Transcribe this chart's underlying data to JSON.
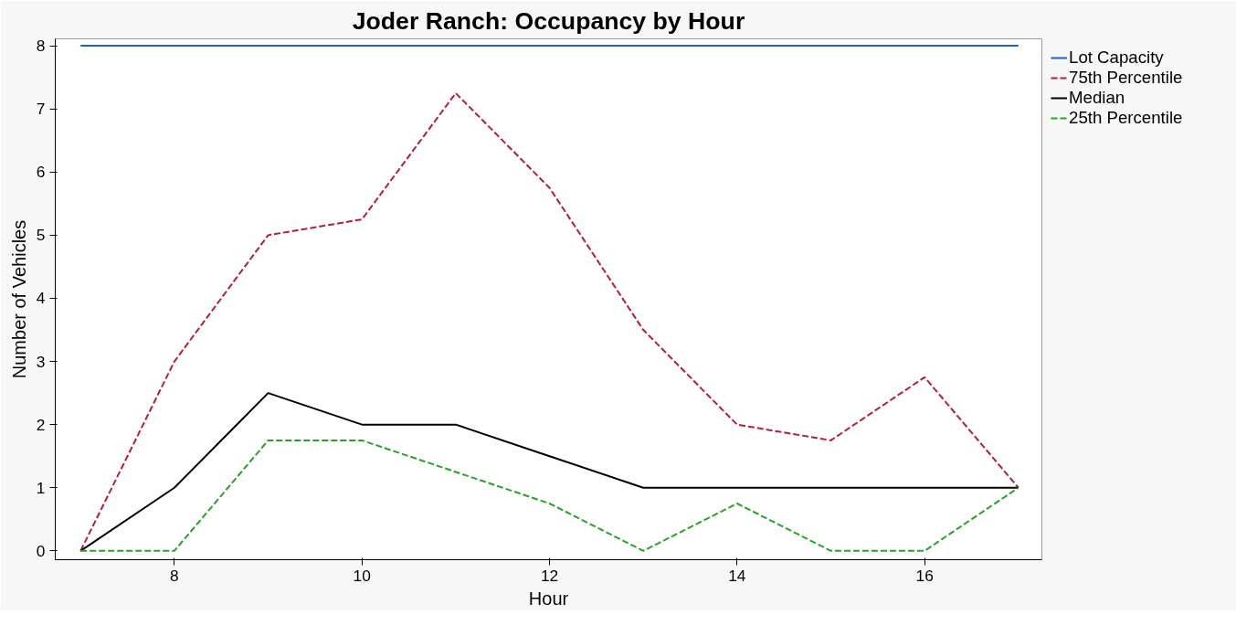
{
  "chart_data": {
    "type": "line",
    "title": "Joder Ranch: Occupancy by Hour",
    "xlabel": "Hour",
    "ylabel": "Number of Vehicles",
    "x": [
      7,
      8,
      9,
      10,
      11,
      12,
      13,
      14,
      15,
      16,
      17
    ],
    "series": [
      {
        "name": "Lot Capacity",
        "color": "#1f5fd6",
        "line_style": "solid",
        "values": [
          8,
          8,
          8,
          8,
          8,
          8,
          8,
          8,
          8,
          8,
          8
        ]
      },
      {
        "name": "75th Percentile",
        "color": "#b0203a",
        "line_style": "dashed",
        "values": [
          0,
          3,
          5,
          5.25,
          7.25,
          5.75,
          3.5,
          2,
          1.75,
          2.75,
          1
        ]
      },
      {
        "name": "Median",
        "color": "#000000",
        "line_style": "solid",
        "values": [
          0,
          1,
          2.5,
          2,
          2,
          1.5,
          1,
          1,
          1,
          1,
          1
        ]
      },
      {
        "name": "25th Percentile",
        "color": "#2ca02c",
        "line_style": "dashed",
        "values": [
          0,
          0,
          1.75,
          1.75,
          1.25,
          0.75,
          0,
          0.75,
          0,
          0,
          1
        ]
      }
    ],
    "xlim": [
      6.73,
      17.25
    ],
    "ylim": [
      -0.14,
      8.11
    ],
    "xticks": [
      8,
      10,
      12,
      14,
      16
    ],
    "yticks": [
      0,
      1,
      2,
      3,
      4,
      5,
      6,
      7,
      8
    ],
    "grid": false,
    "legend": "right",
    "marker": "none"
  }
}
